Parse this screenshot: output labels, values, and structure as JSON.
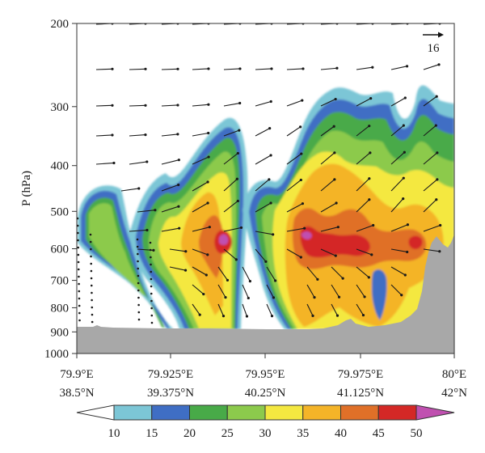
{
  "chart_data": {
    "type": "heatmap",
    "y_axis": {
      "label": "P (hPa)",
      "ticks": [
        200,
        300,
        400,
        500,
        600,
        700,
        800,
        900,
        1000
      ],
      "range": [
        1000,
        200
      ],
      "scale": "log"
    },
    "x_axis": {
      "tick_lon": [
        "79.9°E",
        "79.925°E",
        "79.95°E",
        "79.975°E",
        "80°E"
      ],
      "tick_lat": [
        "38.5°N",
        "39.375°N",
        "40.25°N",
        "41.125°N",
        "42°N"
      ],
      "range": [
        79.9,
        80.0
      ]
    },
    "colorbar": {
      "levels": [
        10,
        15,
        20,
        25,
        30,
        35,
        40,
        45,
        50
      ],
      "colors": [
        "#ffffff",
        "#7cc6d6",
        "#3f6ec4",
        "#48aa48",
        "#8cca4c",
        "#f4e840",
        "#f4b428",
        "#e07028",
        "#d42826",
        "#c050b0"
      ],
      "extend": "both"
    },
    "reference_vector": "16",
    "terrain_color": "#a8a8a8",
    "cells": [
      {
        "lon": 79.9035,
        "p": 555,
        "value": 25
      },
      {
        "lon": 79.924,
        "p": 605,
        "value": 27
      },
      {
        "lon": 79.9375,
        "p": 570,
        "value": 52
      },
      {
        "lon": 79.9385,
        "p": 440,
        "value": 33
      },
      {
        "lon": 79.962,
        "p": 570,
        "value": 50
      },
      {
        "lon": 79.974,
        "p": 580,
        "value": 46
      },
      {
        "lon": 79.98,
        "p": 830,
        "value": 14
      },
      {
        "lon": 79.99,
        "p": 585,
        "value": 47
      }
    ]
  }
}
